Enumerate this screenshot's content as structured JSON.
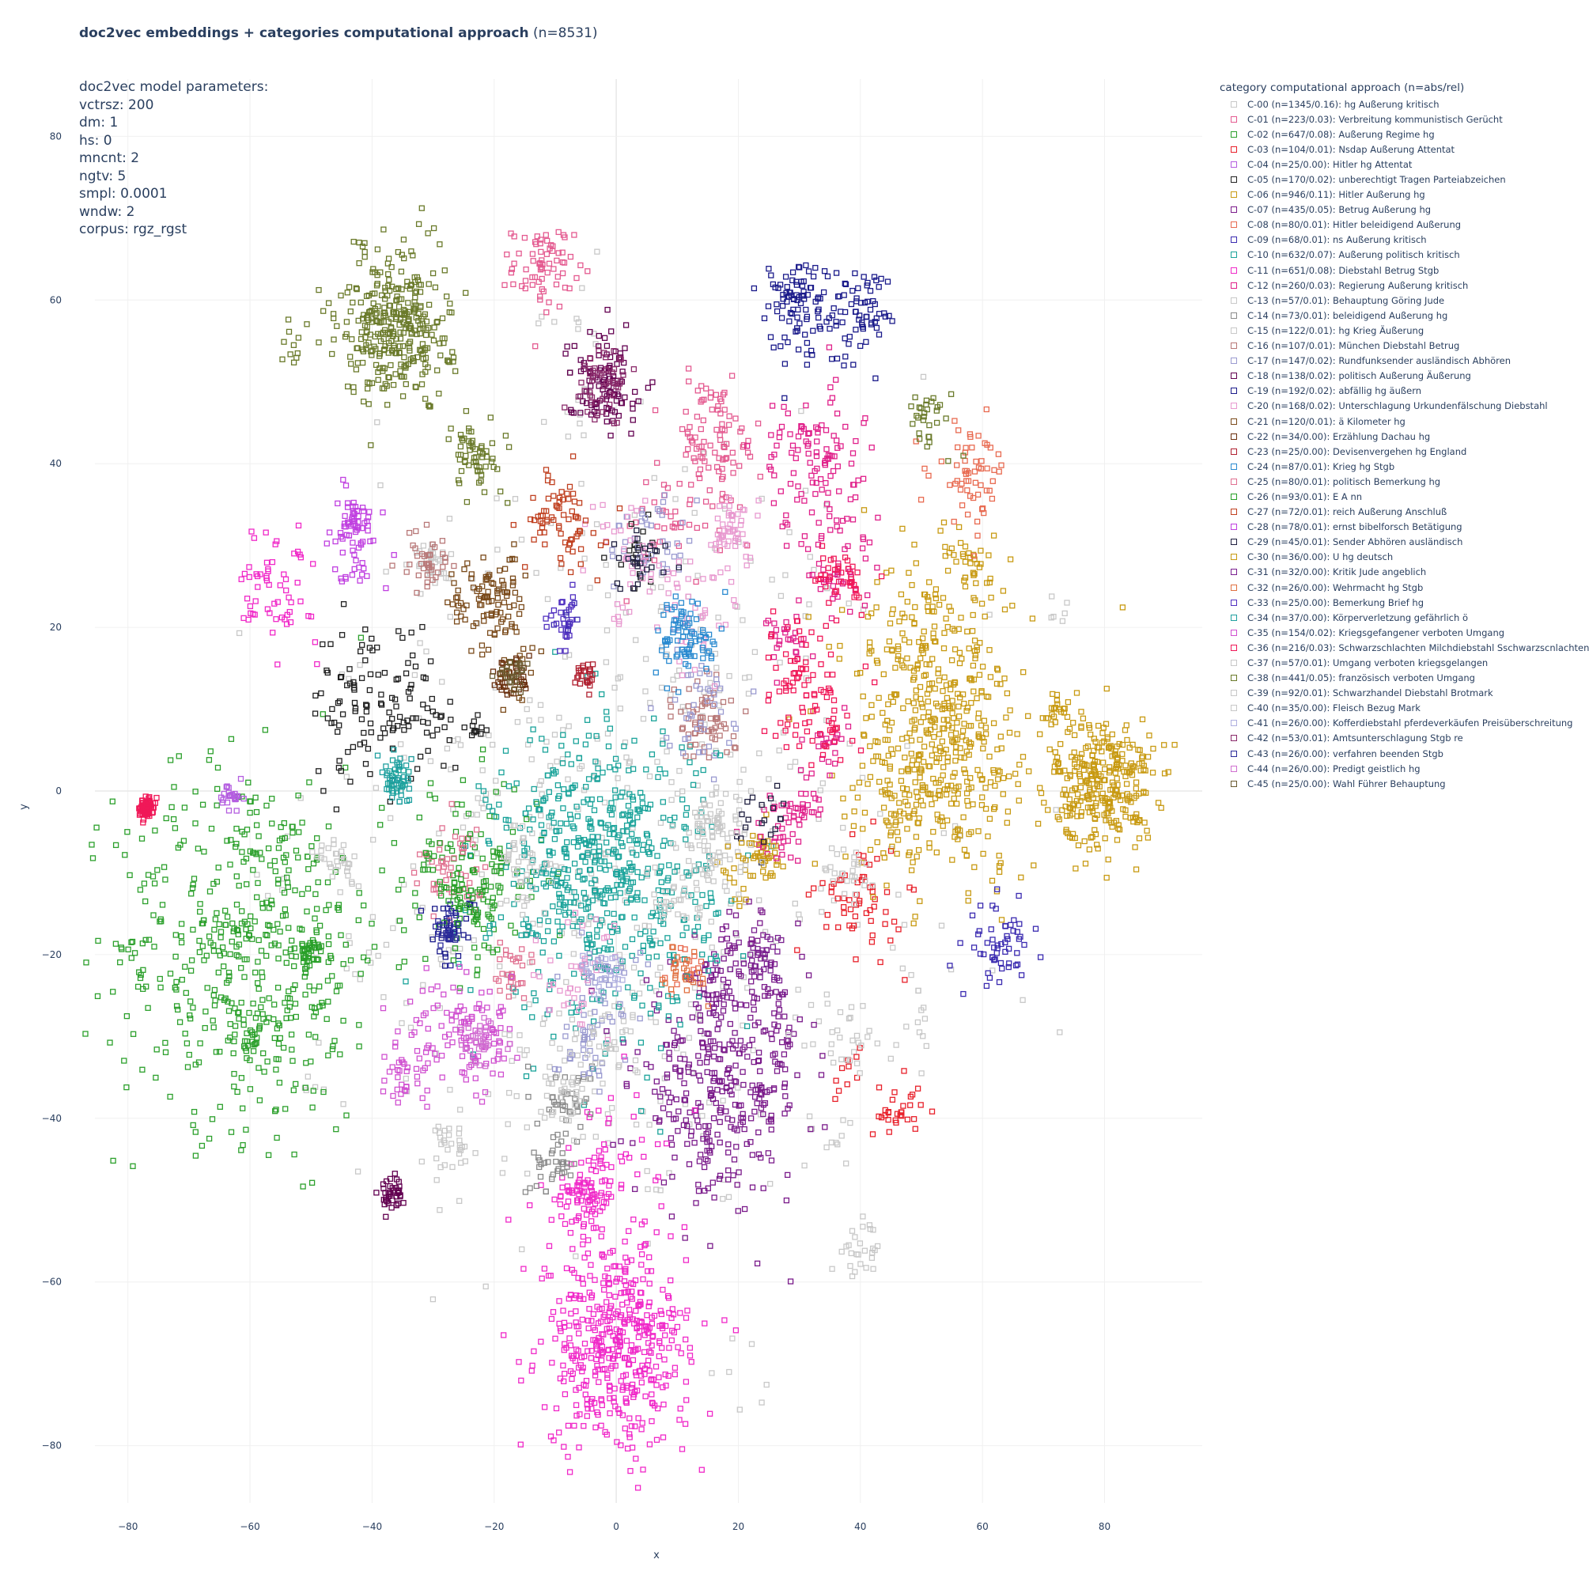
{
  "chart_title": {
    "bold": "doc2vec embeddings + categories computational approach",
    "normal": " (n=8531)"
  },
  "params_lines": [
    "doc2vec model parameters:",
    "vctrsz: 200",
    "dm: 1",
    "hs: 0",
    "mncnt: 2",
    "ngtv: 5",
    "smpl: 0.0001",
    "wndw: 2",
    "corpus: rgz_rgst"
  ],
  "chart_data": {
    "type": "scatter",
    "marker": "square-open",
    "xlabel": "x",
    "ylabel": "y",
    "xlim": [
      -88,
      96
    ],
    "ylim": [
      -87,
      87
    ],
    "xticks": [
      -80,
      -60,
      -40,
      -20,
      0,
      20,
      40,
      60,
      80
    ],
    "yticks": [
      -80,
      -60,
      -40,
      -20,
      0,
      20,
      40,
      60,
      80
    ],
    "grid": true,
    "legend_title": "category computational approach (n=abs/rel)",
    "legend_position": "right",
    "series": [
      {
        "name": "C-00 (n=1345/0.16): hg Außerung kritisch",
        "color": "#c8c8c8",
        "clusters": [
          [
            0,
            -8,
            24,
            180
          ],
          [
            -5,
            -25,
            16,
            80
          ],
          [
            10,
            5,
            18,
            70
          ],
          [
            0,
            0,
            26,
            100
          ],
          [
            -15,
            0,
            18,
            60
          ],
          [
            -4,
            -40,
            10,
            20
          ],
          [
            50,
            -29,
            2,
            10
          ],
          [
            73,
            22,
            1,
            6
          ],
          [
            48,
            -13,
            8,
            18
          ],
          [
            19,
            -70,
            3,
            6
          ],
          [
            -50,
            -37,
            1,
            5
          ],
          [
            -27,
            -43,
            2,
            8
          ],
          [
            35,
            -42,
            2,
            10
          ],
          [
            40,
            -56,
            2,
            12
          ],
          [
            -8,
            57,
            3,
            10
          ],
          [
            -5,
            48,
            3,
            10
          ],
          [
            -40,
            -20,
            3,
            10
          ]
        ]
      },
      {
        "name": "C-01 (n=223/0.03): Verbreitung kommunistisch Gerücht",
        "color": "#e45a90",
        "clusters": [
          [
            -12,
            64,
            2.5,
            70
          ],
          [
            16,
            42,
            4,
            90
          ],
          [
            8,
            32,
            4,
            35
          ],
          [
            16,
            48,
            1,
            8
          ]
        ]
      },
      {
        "name": "C-02 (n=647/0.08): Außerung Regime hg",
        "color": "#2ca02c",
        "clusters": [
          [
            -60,
            -19,
            11,
            520
          ],
          [
            -23,
            -10,
            6,
            110
          ],
          [
            -60,
            -30,
            1,
            12
          ]
        ]
      },
      {
        "name": "C-03 (n=104/0.01): Nsdap Außerung Attentat",
        "color": "#e8202a",
        "clusters": [
          [
            40,
            -13,
            3.5,
            60
          ],
          [
            46,
            -39,
            2,
            30
          ],
          [
            38,
            -35,
            2,
            10
          ]
        ]
      },
      {
        "name": "C-04 (n=25/0.00): Hitler hg Attentat",
        "color": "#b45ee0",
        "clusters": [
          [
            -63,
            -1,
            1,
            25
          ]
        ]
      },
      {
        "name": "C-05 (n=170/0.02): unberechtigt Tragen Parteiabzeichen",
        "color": "#202020",
        "clusters": [
          [
            -40,
            11,
            5,
            110
          ],
          [
            4,
            29,
            2,
            20
          ],
          [
            -30,
            9,
            2.5,
            20
          ],
          [
            -23,
            8,
            1,
            10
          ]
        ]
      },
      {
        "name": "C-06 (n=946/0.11): Hitler Außerung hg",
        "color": "#c89a12",
        "clusters": [
          [
            80,
            1,
            4,
            300
          ],
          [
            54,
            5,
            8,
            400
          ],
          [
            50,
            20,
            6,
            120
          ],
          [
            58,
            27,
            1.5,
            25
          ],
          [
            47,
            -2,
            3,
            50
          ],
          [
            72,
            10,
            2,
            20
          ],
          [
            24,
            -8,
            2,
            20
          ]
        ]
      },
      {
        "name": "C-07 (n=435/0.05): Betrug Außerung hg",
        "color": "#7a1a8a",
        "clusters": [
          [
            17,
            -36,
            7,
            340
          ],
          [
            20,
            -22,
            4,
            60
          ],
          [
            27,
            -30,
            2,
            20
          ]
        ]
      },
      {
        "name": "C-08 (n=80/0.01): Hitler beleidigend Außerung",
        "color": "#e86a50",
        "clusters": [
          [
            58,
            39,
            3,
            60
          ],
          [
            11,
            -22,
            2,
            15
          ]
        ]
      },
      {
        "name": "C-09 (n=68/0.01): ns Außerung kritisch",
        "color": "#3a2ab0",
        "clusters": [
          [
            63,
            -19,
            2.5,
            55
          ],
          [
            -8,
            21,
            1,
            10
          ]
        ]
      },
      {
        "name": "C-10 (n=632/0.07): Außerung politisch kritisch",
        "color": "#1aa39a",
        "clusters": [
          [
            -2,
            -10,
            9,
            600
          ],
          [
            -36,
            1,
            1,
            20
          ]
        ]
      },
      {
        "name": "C-11 (n=651/0.08): Diebstahl Betrug Stgb",
        "color": "#f028c8",
        "clusters": [
          [
            0,
            -68,
            6,
            440
          ],
          [
            -5,
            -49,
            2.5,
            80
          ],
          [
            0,
            -48,
            6,
            60
          ],
          [
            -56,
            25,
            3.5,
            60
          ]
        ]
      },
      {
        "name": "C-12 (n=260/0.03): Regierung Außerung kritisch",
        "color": "#e0208a",
        "clusters": [
          [
            32,
            41,
            4,
            100
          ],
          [
            36,
            28,
            4,
            60
          ],
          [
            28,
            18,
            2,
            25
          ],
          [
            30,
            -2,
            1.5,
            30
          ],
          [
            26,
            -5,
            2,
            25
          ],
          [
            34,
            5,
            2,
            20
          ]
        ]
      },
      {
        "name": "C-13 (n=57/0.01): Behauptung Göring Jude",
        "color": "#c8c8c8",
        "clusters": [
          [
            -30,
            28,
            1.5,
            30
          ],
          [
            10,
            -14,
            2,
            27
          ]
        ]
      },
      {
        "name": "C-14 (n=73/0.01): beleidigend Außerung hg",
        "color": "#8a8a8a",
        "clusters": [
          [
            -10,
            -45,
            2,
            35
          ],
          [
            -8,
            -38,
            2,
            38
          ]
        ]
      },
      {
        "name": "C-15 (n=122/0.01): hg Krieg Äußerung",
        "color": "#c8c8c8",
        "clusters": [
          [
            16,
            -3,
            2.5,
            40
          ],
          [
            -45,
            -9,
            2,
            30
          ],
          [
            -8,
            -38,
            2,
            25
          ],
          [
            38,
            -10,
            2,
            27
          ]
        ]
      },
      {
        "name": "C-16 (n=107/0.01): München Diebstahl Betrug",
        "color": "#b87878",
        "clusters": [
          [
            -31,
            28,
            2,
            40
          ],
          [
            15,
            9,
            2.5,
            67
          ]
        ]
      },
      {
        "name": "C-17 (n=147/0.02): Rundfunksender ausländisch Abhören",
        "color": "#9a9ad0",
        "clusters": [
          [
            5,
            30,
            3,
            40
          ],
          [
            -3,
            -22,
            3,
            30
          ],
          [
            14,
            10,
            3,
            40
          ],
          [
            -5,
            -30,
            3,
            37
          ]
        ]
      },
      {
        "name": "C-18 (n=138/0.02): politisch Außerung Äußerung",
        "color": "#620050",
        "clusters": [
          [
            -2,
            50,
            3,
            100
          ],
          [
            -37,
            -49,
            1,
            38
          ]
        ]
      },
      {
        "name": "C-19 (n=192/0.02): abfällig hg äußern",
        "color": "#1a1a8a",
        "clusters": [
          [
            30,
            59,
            3.5,
            100
          ],
          [
            40,
            59,
            2.5,
            60
          ],
          [
            -27,
            -17,
            2,
            32
          ]
        ]
      },
      {
        "name": "C-20 (n=168/0.02): Unterschlagung Urkundenfälschung Diebstahl",
        "color": "#e89ad0",
        "clusters": [
          [
            19,
            32,
            2,
            50
          ],
          [
            12,
            22,
            4,
            40
          ],
          [
            -6,
            -23,
            4,
            40
          ],
          [
            3,
            28,
            4,
            38
          ]
        ]
      },
      {
        "name": "C-21 (n=120/0.01): ä Kilometer hg",
        "color": "#7a4a1a",
        "clusters": [
          [
            -21,
            23,
            3,
            100
          ],
          [
            -17,
            14,
            2,
            20
          ]
        ]
      },
      {
        "name": "C-22 (n=34/0.00): Erzählung Dachau hg",
        "color": "#6a3010",
        "clusters": [
          [
            -17,
            14,
            1.5,
            34
          ]
        ]
      },
      {
        "name": "C-23 (n=25/0.00): Devisenvergehen hg England",
        "color": "#b02030",
        "clusters": [
          [
            -5,
            14,
            1,
            25
          ]
        ]
      },
      {
        "name": "C-24 (n=87/0.01): Krieg hg Stgb",
        "color": "#2a8ad0",
        "clusters": [
          [
            12,
            19,
            2.5,
            87
          ]
        ]
      },
      {
        "name": "C-25 (n=80/0.01): politisch Bemerkung hg",
        "color": "#e07090",
        "clusters": [
          [
            -17,
            -22,
            2,
            30
          ],
          [
            -27,
            -10,
            3,
            50
          ]
        ]
      },
      {
        "name": "C-26 (n=93/0.01): E A nn",
        "color": "#28a028",
        "clusters": [
          [
            -24,
            -13,
            3,
            60
          ],
          [
            -50,
            -20,
            1,
            33
          ]
        ]
      },
      {
        "name": "C-27 (n=72/0.01): reich Außerung Anschluß",
        "color": "#c04020",
        "clusters": [
          [
            -9,
            33,
            3,
            72
          ]
        ]
      },
      {
        "name": "C-28 (n=78/0.01): ernst bibelforsch Betätigung",
        "color": "#c040e0",
        "clusters": [
          [
            -43,
            33,
            1.5,
            50
          ],
          [
            -43,
            29,
            2,
            28
          ]
        ]
      },
      {
        "name": "C-29 (n=45/0.01): Sender Abhören ausländisch",
        "color": "#202040",
        "clusters": [
          [
            4,
            28,
            2,
            25
          ],
          [
            24,
            -3,
            2,
            20
          ]
        ]
      },
      {
        "name": "C-30 (n=36/0.00): U hg deutsch",
        "color": "#c89a12",
        "clusters": [
          [
            20,
            -10,
            2,
            20
          ],
          [
            24,
            -8,
            1.5,
            16
          ]
        ]
      },
      {
        "name": "C-31 (n=32/0.00): Kritik Jude angeblich",
        "color": "#7a2090",
        "clusters": [
          [
            24,
            -20,
            2,
            32
          ]
        ]
      },
      {
        "name": "C-32 (n=26/0.00): Wehrmacht hg Stgb",
        "color": "#e07040",
        "clusters": [
          [
            11,
            -22,
            1.5,
            26
          ]
        ]
      },
      {
        "name": "C-33 (n=25/0.00): Bemerkung Brief hg",
        "color": "#5030c0",
        "clusters": [
          [
            -9,
            21,
            1.5,
            25
          ]
        ]
      },
      {
        "name": "C-34 (n=37/0.00): Körperverletzung gefährlich ö",
        "color": "#20a0a0",
        "clusters": [
          [
            -36,
            1,
            1.5,
            37
          ]
        ]
      },
      {
        "name": "C-35 (n=154/0.02): Kriegsgefangener verboten Umgang",
        "color": "#d050d0",
        "clusters": [
          [
            -22,
            -31,
            3,
            80
          ],
          [
            -30,
            -30,
            4,
            50
          ],
          [
            -35,
            -35,
            2,
            24
          ]
        ]
      },
      {
        "name": "C-36 (n=216/0.03): Schwarzschlachten Milchdiebstahl Sschwarzscnlachten",
        "color": "#f01858",
        "clusters": [
          [
            -77,
            -2,
            0.6,
            80
          ],
          [
            30,
            15,
            3,
            40
          ],
          [
            37,
            26,
            2,
            40
          ],
          [
            33,
            10,
            3,
            56
          ]
        ]
      },
      {
        "name": "C-37 (n=57/0.01): Umgang verboten kriegsgelangen",
        "color": "#c8c8c8",
        "clusters": [
          [
            -2,
            -30,
            3,
            30
          ],
          [
            38,
            -30,
            3,
            27
          ]
        ]
      },
      {
        "name": "C-38 (n=441/0.05): französisch verboten Umgang",
        "color": "#6a7a2a",
        "clusters": [
          [
            -36,
            57,
            4.5,
            340
          ],
          [
            -23,
            41,
            2.5,
            60
          ],
          [
            52,
            46,
            2,
            30
          ],
          [
            -53,
            55,
            1.5,
            11
          ]
        ]
      },
      {
        "name": "C-39 (n=92/0.01): Schwarzhandel Diebstahl Brotmark",
        "color": "#c8c8c8",
        "clusters": [
          [
            16,
            -8,
            3,
            50
          ],
          [
            -15,
            -10,
            3,
            42
          ]
        ]
      },
      {
        "name": "C-40 (n=35/0.00): Fleisch Bezug Mark",
        "color": "#c8c8c8",
        "clusters": [
          [
            -27,
            -43,
            1.5,
            20
          ],
          [
            40,
            -56,
            1.5,
            15
          ]
        ]
      },
      {
        "name": "C-41 (n=26/0.00): Kofferdiebstahl pferdeverkäufen Preisüberschreitung",
        "color": "#b0b0e0",
        "clusters": [
          [
            -2,
            -22,
            2,
            26
          ]
        ]
      },
      {
        "name": "C-42 (n=53/0.01): Amtsunterschlagung Stgb re",
        "color": "#8a2a6a",
        "clusters": [
          [
            -2,
            50,
            2,
            53
          ]
        ]
      },
      {
        "name": "C-43 (n=26/0.00): verfahren beenden Stgb",
        "color": "#2a2a9a",
        "clusters": [
          [
            -27,
            -17,
            1.5,
            26
          ]
        ]
      },
      {
        "name": "C-44 (n=26/0.00): Predigt geistlich hg",
        "color": "#d070d0",
        "clusters": [
          [
            -22,
            -31,
            1.5,
            26
          ]
        ]
      },
      {
        "name": "C-45 (n=25/0.00): Wahl Führer Behauptung",
        "color": "#6a5a30",
        "clusters": [
          [
            -17,
            14,
            1.2,
            25
          ]
        ]
      }
    ],
    "cluster_format": "[center_x, center_y, spread_sd, count]"
  }
}
